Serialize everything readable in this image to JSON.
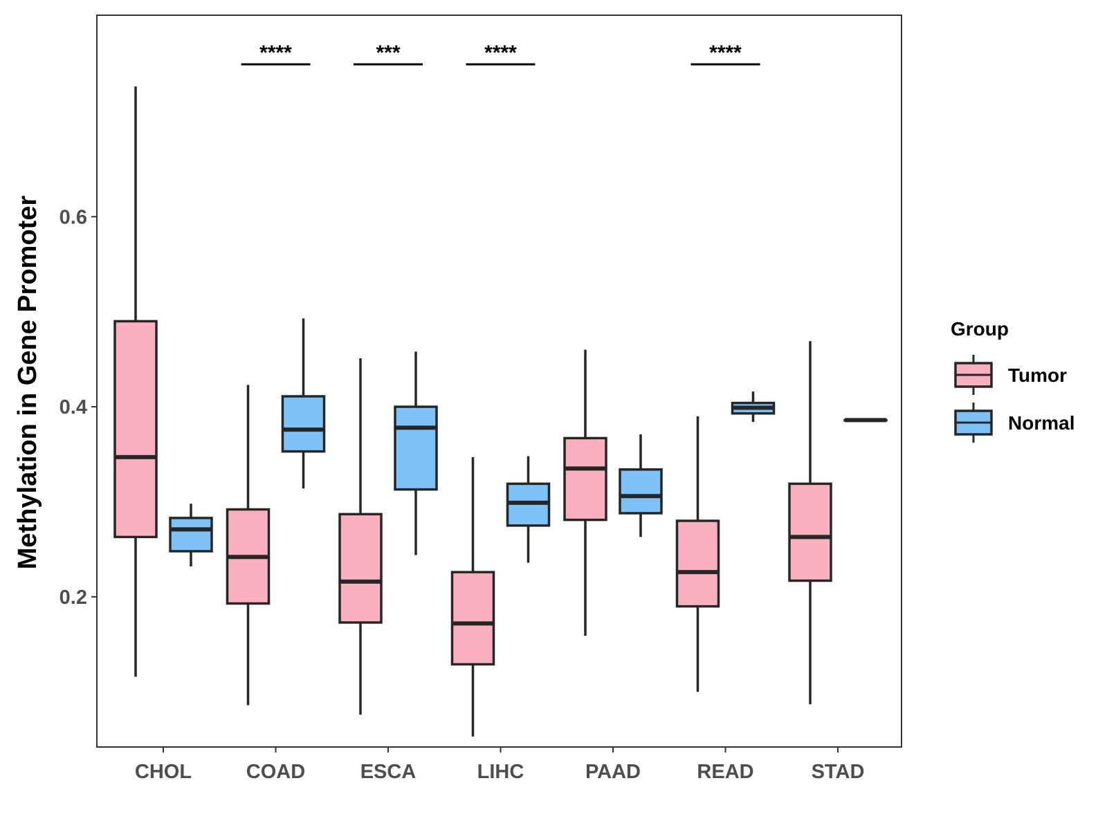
{
  "chart_data": {
    "type": "boxplot",
    "title": "",
    "xlabel": "",
    "ylabel": "Methylation in Gene Promoter",
    "ylim": [
      0.042,
      0.812
    ],
    "yticks": [
      0.2,
      0.4,
      0.6
    ],
    "ytick_labels": [
      "0.2",
      "0.4",
      "0.6"
    ],
    "categories": [
      "CHOL",
      "COAD",
      "ESCA",
      "LIHC",
      "PAAD",
      "READ",
      "STAD"
    ],
    "legend": {
      "title": "Group",
      "position": "right",
      "entries": [
        {
          "name": "Tumor",
          "color": "#fbb0c0"
        },
        {
          "name": "Normal",
          "color": "#7ec2f8"
        }
      ]
    },
    "series": [
      {
        "name": "Tumor",
        "color": "#fbb0c0",
        "boxes": [
          {
            "category": "CHOL",
            "min": 0.116,
            "q1": 0.263,
            "median": 0.347,
            "q3": 0.49,
            "max": 0.737
          },
          {
            "category": "COAD",
            "min": 0.086,
            "q1": 0.193,
            "median": 0.242,
            "q3": 0.292,
            "max": 0.423
          },
          {
            "category": "ESCA",
            "min": 0.076,
            "q1": 0.173,
            "median": 0.216,
            "q3": 0.287,
            "max": 0.451
          },
          {
            "category": "LIHC",
            "min": 0.053,
            "q1": 0.129,
            "median": 0.172,
            "q3": 0.226,
            "max": 0.347
          },
          {
            "category": "PAAD",
            "min": 0.159,
            "q1": 0.281,
            "median": 0.335,
            "q3": 0.367,
            "max": 0.46
          },
          {
            "category": "READ",
            "min": 0.1,
            "q1": 0.19,
            "median": 0.226,
            "q3": 0.28,
            "max": 0.39
          },
          {
            "category": "STAD",
            "min": 0.087,
            "q1": 0.217,
            "median": 0.263,
            "q3": 0.319,
            "max": 0.469
          }
        ]
      },
      {
        "name": "Normal",
        "color": "#7ec2f8",
        "boxes": [
          {
            "category": "CHOL",
            "min": 0.232,
            "q1": 0.248,
            "median": 0.271,
            "q3": 0.283,
            "max": 0.298
          },
          {
            "category": "COAD",
            "min": 0.314,
            "q1": 0.353,
            "median": 0.376,
            "q3": 0.411,
            "max": 0.493
          },
          {
            "category": "ESCA",
            "min": 0.244,
            "q1": 0.313,
            "median": 0.378,
            "q3": 0.4,
            "max": 0.458
          },
          {
            "category": "LIHC",
            "min": 0.236,
            "q1": 0.275,
            "median": 0.299,
            "q3": 0.319,
            "max": 0.348
          },
          {
            "category": "PAAD",
            "min": 0.263,
            "q1": 0.288,
            "median": 0.306,
            "q3": 0.334,
            "max": 0.371
          },
          {
            "category": "READ",
            "min": 0.384,
            "q1": 0.393,
            "median": 0.399,
            "q3": 0.404,
            "max": 0.416
          },
          {
            "category": "STAD",
            "min": 0.386,
            "q1": 0.386,
            "median": 0.386,
            "q3": 0.386,
            "max": 0.386
          }
        ]
      }
    ],
    "annotations": [
      {
        "category": "COAD",
        "label": "****"
      },
      {
        "category": "ESCA",
        "label": "***"
      },
      {
        "category": "LIHC",
        "label": "****"
      },
      {
        "category": "READ",
        "label": "****"
      }
    ]
  }
}
